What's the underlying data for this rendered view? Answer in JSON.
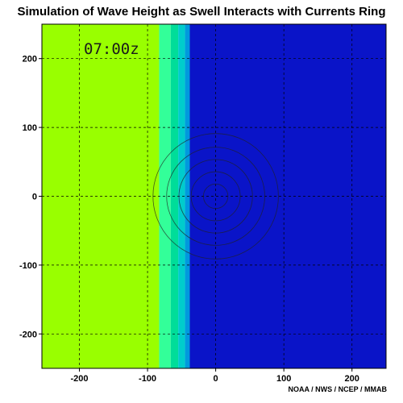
{
  "title": "Simulation of Wave Height as Swell Interacts with Currents Ring",
  "credit": "NOAA / NWS / NCEP / MMAB",
  "chart_data": {
    "type": "heatmap",
    "title": "Simulation of Wave Height as Swell Interacts with Currents Ring",
    "xlabel": "",
    "ylabel": "",
    "xlim": [
      -255,
      250
    ],
    "ylim": [
      -250,
      250
    ],
    "xticks": [
      -200,
      -100,
      0,
      100,
      200
    ],
    "yticks": [
      -200,
      -100,
      0,
      100,
      200
    ],
    "xtick_labels": [
      "-200",
      "-100",
      "0",
      "100",
      "200"
    ],
    "ytick_labels": [
      "-200",
      "-100",
      "0",
      "100",
      "200"
    ],
    "grid": true,
    "grid_style": "dashed",
    "annotation": "07:00z",
    "bands": [
      {
        "x0": -255,
        "x1": -83,
        "color": "#99ff00"
      },
      {
        "x0": -83,
        "x1": -66,
        "color": "#33ff99"
      },
      {
        "x0": -66,
        "x1": -55,
        "color": "#00dd99"
      },
      {
        "x0": -55,
        "x1": -45,
        "color": "#00cccc"
      },
      {
        "x0": -45,
        "x1": -38,
        "color": "#0099dd"
      },
      {
        "x0": -38,
        "x1": 250,
        "color": "#0a14c8"
      }
    ],
    "ring": {
      "center": [
        0,
        0
      ],
      "radii": [
        18,
        36,
        54,
        72,
        92
      ]
    }
  }
}
